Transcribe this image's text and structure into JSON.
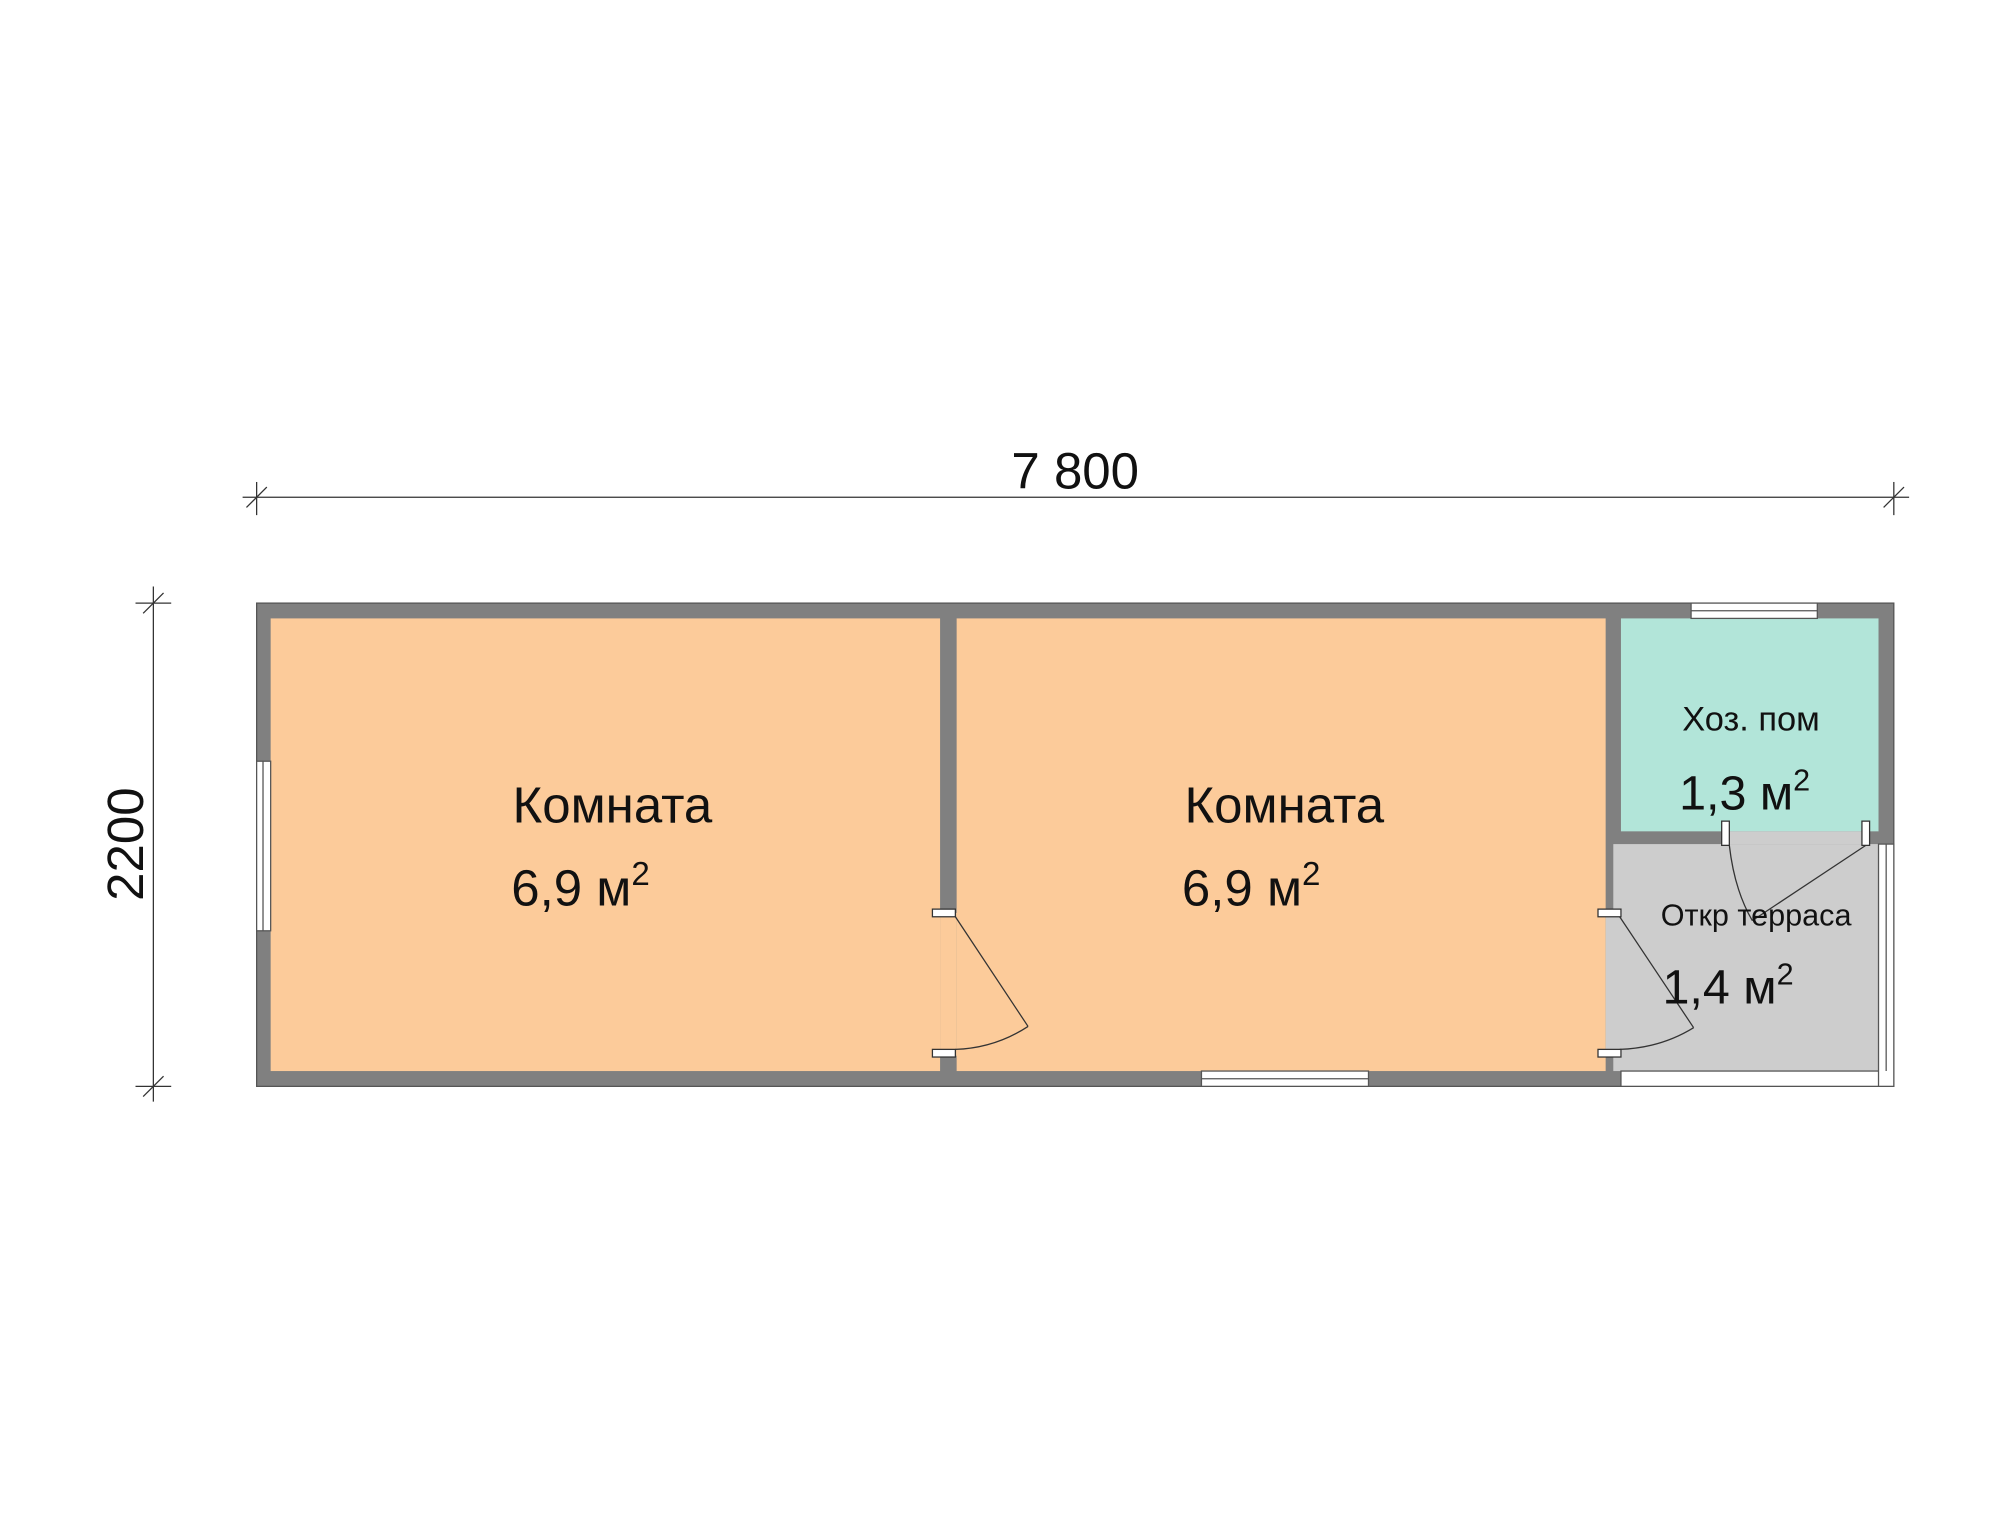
{
  "dimensions": {
    "width_label": "7 800",
    "height_label": "2200"
  },
  "rooms": [
    {
      "name": "Комната",
      "area": "6,9 м",
      "sup": "2",
      "color": "#FCCB9A"
    },
    {
      "name": "Комната",
      "area": "6,9 м",
      "sup": "2",
      "color": "#FCCB9A"
    },
    {
      "name": "Хоз. пом",
      "area": "1,3 м",
      "sup": "2",
      "color": "#B2E5D9"
    },
    {
      "name": "Откр терраса",
      "area": "1,4 м",
      "sup": "2",
      "color": "#CDCDCD"
    }
  ],
  "colors": {
    "wall": "#808080",
    "line": "#333333"
  }
}
